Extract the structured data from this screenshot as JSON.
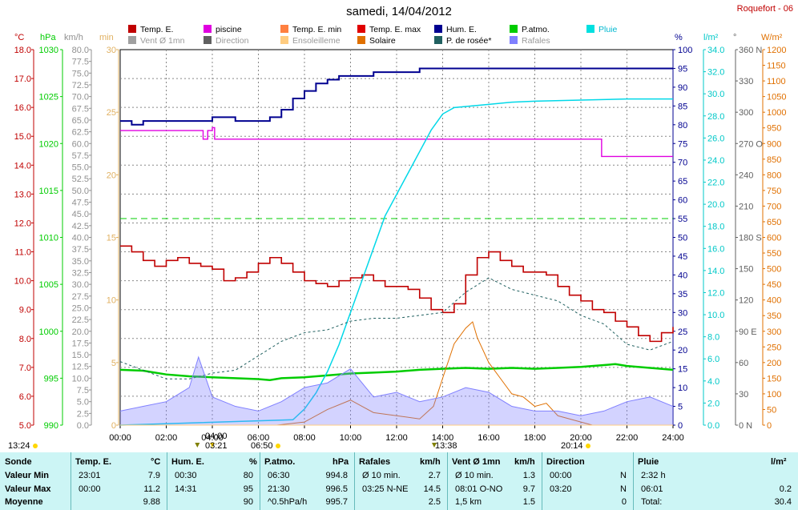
{
  "header": {
    "title": "samedi, 14/04/2012",
    "station": "Roquefort - 06"
  },
  "legend": [
    {
      "label": "Temp. E.",
      "color": "#c00000"
    },
    {
      "label": "piscine",
      "color": "#e000e0"
    },
    {
      "label": "Temp. E. min",
      "color": "#ff8040"
    },
    {
      "label": "Temp. E. max",
      "color": "#e00000"
    },
    {
      "label": "Hum. E.",
      "color": "#000090"
    },
    {
      "label": "P.atmo.",
      "color": "#00cc00"
    },
    {
      "label": "Pluie",
      "color": "#00e0e0"
    },
    {
      "label": "Vent Ø 1mn",
      "color": "#a0a0a0"
    },
    {
      "label": "Direction",
      "color": "#606060"
    },
    {
      "label": "Ensoleilleme",
      "color": "#ffcc80"
    },
    {
      "label": "Solaire",
      "color": "#e07000"
    },
    {
      "label": "P. de rosée*",
      "color": "#206060"
    },
    {
      "label": "Rafales",
      "color": "#8080ff"
    }
  ],
  "axis_units": {
    "temp": "°C",
    "press": "hPa",
    "wind": "km/h",
    "sun": "min",
    "hum": "%",
    "rain": "l/m²",
    "dir": "°",
    "solar": "W/m²"
  },
  "colors": {
    "temp": "#c00000",
    "press": "#00cc00",
    "wind": "#909090",
    "sun": "#e0b060",
    "hum": "#000090",
    "rain": "#00c8c8",
    "dir": "#606060",
    "solar": "#e07000"
  },
  "markers": {
    "sunrise": "06:50",
    "sunset": "20:14",
    "moonrise": "04:00",
    "moonset": "13:24",
    "max_gust_time": "03:21",
    "max_gust_time2": "13:38"
  },
  "chart_data": {
    "type": "line",
    "x_label": "",
    "x_ticks": [
      "00:00",
      "02:00",
      "04:00",
      "06:00",
      "08:00",
      "10:00",
      "12:00",
      "14:00",
      "16:00",
      "18:00",
      "20:00",
      "22:00",
      "24:00"
    ],
    "axes": {
      "temp_c": {
        "ylim": [
          5.0,
          18.0
        ],
        "ticks": [
          "5.0",
          "6.0",
          "7.0",
          "8.0",
          "9.0",
          "10.0",
          "11.0",
          "12.0",
          "13.0",
          "14.0",
          "15.0",
          "16.0",
          "17.0",
          "18.0"
        ]
      },
      "press_hpa": {
        "ylim": [
          990,
          1030
        ],
        "ticks": [
          "990",
          "995",
          "1000",
          "1005",
          "1010",
          "1015",
          "1020",
          "1025",
          "1030"
        ]
      },
      "wind_kmh": {
        "ylim": [
          0,
          80
        ],
        "ticks": [
          "0.0",
          "2.5",
          "5.0",
          "7.5",
          "10.0",
          "12.5",
          "15.0",
          "17.5",
          "20.0",
          "22.5",
          "25.0",
          "27.5",
          "30.0",
          "32.5",
          "35.0",
          "37.5",
          "40.0",
          "42.5",
          "45.0",
          "47.5",
          "50.0",
          "52.5",
          "55.0",
          "57.5",
          "60.0",
          "62.5",
          "65.0",
          "67.5",
          "70.0",
          "72.5",
          "75.0",
          "77.5",
          "80.0"
        ]
      },
      "sun_min": {
        "ylim": [
          0,
          30
        ],
        "ticks": [
          "0",
          "5",
          "10",
          "15",
          "20",
          "25",
          "30"
        ]
      },
      "hum_pct": {
        "ylim": [
          0,
          100
        ],
        "ticks": [
          "0",
          "5",
          "10",
          "15",
          "20",
          "25",
          "30",
          "35",
          "40",
          "45",
          "50",
          "55",
          "60",
          "65",
          "70",
          "75",
          "80",
          "85",
          "90",
          "95",
          "100"
        ]
      },
      "rain_mm": {
        "ylim": [
          0,
          35
        ],
        "ticks": [
          "0.0",
          "2.0",
          "4.0",
          "6.0",
          "8.0",
          "10.0",
          "12.0",
          "14.0",
          "16.0",
          "18.0",
          "20.0",
          "22.0",
          "24.0",
          "26.0",
          "28.0",
          "30.0",
          "32.0",
          "34.0"
        ]
      },
      "dir_deg": {
        "ylim": [
          0,
          360
        ],
        "ticks": [
          "0 N",
          "30",
          "60",
          "90 E",
          "120",
          "150",
          "180 S",
          "210",
          "240",
          "270 O",
          "300",
          "330",
          "360 N"
        ]
      },
      "solar_wm2": {
        "ylim": [
          0,
          1200
        ],
        "ticks": [
          "0",
          "50",
          "100",
          "150",
          "200",
          "250",
          "300",
          "350",
          "400",
          "450",
          "500",
          "550",
          "600",
          "650",
          "700",
          "750",
          "800",
          "850",
          "900",
          "950",
          "1000",
          "1050",
          "1100",
          "1150",
          "1200"
        ]
      }
    },
    "series": [
      {
        "name": "Temp. E.",
        "unit": "°C",
        "x": [
          0,
          0.5,
          1,
          1.5,
          2,
          2.5,
          3,
          3.5,
          4,
          4.5,
          5,
          5.5,
          6,
          6.5,
          7,
          7.5,
          8,
          8.5,
          9,
          9.5,
          10,
          10.5,
          11,
          11.5,
          12,
          12.5,
          13,
          13.5,
          14,
          14.5,
          15,
          15.5,
          16,
          16.5,
          17,
          17.5,
          18,
          18.5,
          19,
          19.5,
          20,
          20.5,
          21,
          21.5,
          22,
          22.5,
          23,
          23.5,
          24
        ],
        "values": [
          11.2,
          11.0,
          10.7,
          10.5,
          10.7,
          10.8,
          10.6,
          10.5,
          10.4,
          10.0,
          10.1,
          10.3,
          10.6,
          10.8,
          10.6,
          10.3,
          10.0,
          9.9,
          9.8,
          10.0,
          10.1,
          10.2,
          10.0,
          9.8,
          9.8,
          9.7,
          9.4,
          9.0,
          8.9,
          9.2,
          10.2,
          10.8,
          11.0,
          10.7,
          10.5,
          10.3,
          10.3,
          10.2,
          9.8,
          9.5,
          9.3,
          9.0,
          8.9,
          8.6,
          8.4,
          8.1,
          7.9,
          8.2,
          8.4
        ]
      },
      {
        "name": "piscine",
        "unit": "°C",
        "x": [
          0,
          3.5,
          3.6,
          3.8,
          4.0,
          4.1,
          20.8,
          20.9,
          24
        ],
        "values": [
          15.2,
          15.2,
          14.9,
          15.2,
          15.3,
          14.9,
          14.9,
          14.3,
          14.3
        ]
      },
      {
        "name": "Hum. E.",
        "unit": "%",
        "x": [
          0,
          0.5,
          1,
          2,
          3,
          3.5,
          4,
          5,
          6,
          6.5,
          7,
          7.5,
          8,
          8.5,
          9,
          9.5,
          10,
          11,
          12,
          13,
          14,
          15,
          16,
          17,
          18,
          20,
          22,
          24
        ],
        "values": [
          81,
          80,
          81,
          81,
          81,
          81,
          82,
          81,
          81,
          82,
          84,
          87,
          89,
          91,
          92,
          93,
          93,
          94,
          94,
          95,
          95,
          95,
          95,
          95,
          95,
          95,
          95,
          95
        ]
      },
      {
        "name": "P.atmo.",
        "unit": "hPa",
        "x": [
          0,
          1,
          2,
          3,
          4,
          5,
          6,
          6.5,
          7,
          8,
          9,
          10,
          11,
          12,
          13,
          14,
          15,
          16,
          17,
          18,
          19,
          20,
          21,
          21.5,
          22,
          23,
          24
        ],
        "values": [
          995.9,
          995.8,
          995.4,
          995.2,
          995.1,
          995.0,
          994.9,
          994.8,
          995.0,
          995.1,
          995.3,
          995.5,
          995.6,
          995.7,
          995.9,
          996.0,
          996.1,
          996.0,
          996.1,
          996.0,
          996.1,
          996.2,
          996.4,
          996.5,
          996.3,
          996.1,
          995.9
        ]
      },
      {
        "name": "Pluie",
        "unit": "l/m²",
        "x": [
          0,
          7.5,
          8,
          8.5,
          9,
          9.5,
          10,
          10.5,
          11,
          11.5,
          12,
          12.5,
          13,
          13.5,
          14,
          14.5,
          15,
          16,
          17,
          18,
          20,
          22,
          24
        ],
        "values": [
          0,
          0.5,
          1.5,
          3.0,
          5.0,
          7.5,
          10.5,
          13.5,
          16.5,
          19.5,
          21.5,
          23.5,
          25.5,
          27.5,
          29.0,
          29.6,
          29.7,
          29.9,
          30.1,
          30.2,
          30.3,
          30.4,
          30.4
        ]
      },
      {
        "name": "P. de rosée*",
        "unit": "°C",
        "x": [
          0,
          1,
          2,
          3,
          4,
          5,
          6,
          7,
          8,
          9,
          10,
          11,
          12,
          13,
          14,
          15,
          16,
          17,
          18,
          19,
          20,
          21,
          22,
          23,
          24
        ],
        "values": [
          7.2,
          6.9,
          6.6,
          6.6,
          6.8,
          6.9,
          7.4,
          7.9,
          8.2,
          8.3,
          8.6,
          8.7,
          8.7,
          8.8,
          8.9,
          9.6,
          10.1,
          9.7,
          9.5,
          9.3,
          8.8,
          8.5,
          7.8,
          7.6,
          7.9
        ]
      },
      {
        "name": "Solaire",
        "unit": "W/m²",
        "x": [
          0,
          6.8,
          8,
          9,
          10,
          11,
          12,
          13,
          13.6,
          14,
          14.5,
          15,
          15.3,
          15.5,
          16,
          16.5,
          17,
          17.5,
          18,
          18.5,
          19,
          20,
          20.5,
          24
        ],
        "values": [
          0,
          0,
          10,
          50,
          80,
          40,
          30,
          20,
          60,
          150,
          260,
          310,
          330,
          280,
          200,
          150,
          100,
          90,
          60,
          70,
          30,
          10,
          0,
          0
        ]
      },
      {
        "name": "Rafales",
        "unit": "km/h",
        "x": [
          0,
          1,
          2,
          3,
          3.4,
          4,
          5,
          6,
          7,
          8,
          9,
          10,
          11,
          12,
          13,
          14,
          15,
          16,
          17,
          18,
          19,
          20,
          21,
          22,
          23,
          24
        ],
        "values": [
          3,
          4,
          5,
          8,
          14.5,
          6,
          4,
          3,
          5,
          8,
          9,
          12,
          6,
          7,
          5,
          6,
          8,
          7,
          4,
          3,
          3,
          2,
          3,
          5,
          6,
          4
        ]
      },
      {
        "name": "Ensoleilleme",
        "unit": "min",
        "x": [
          0,
          24
        ],
        "values": [
          0,
          0
        ]
      }
    ],
    "constant_lines": [
      {
        "name": "P.atmo. reference",
        "value_hpa": 1012,
        "style": "dashed"
      }
    ]
  },
  "table": {
    "headers": [
      {
        "label": "Sonde",
        "unit": ""
      },
      {
        "label": "Temp. E.",
        "unit": "°C"
      },
      {
        "label": "Hum. E.",
        "unit": "%"
      },
      {
        "label": "P.atmo.",
        "unit": "hPa"
      },
      {
        "label": "Rafales",
        "unit": "km/h"
      },
      {
        "label": "Vent Ø 1mn",
        "unit": "km/h"
      },
      {
        "label": "Direction",
        "unit": ""
      },
      {
        "label": "Pluie",
        "unit": "l/m²"
      }
    ],
    "rows": [
      {
        "label": "Valeur Min",
        "cells": [
          [
            "23:01",
            "7.9"
          ],
          [
            "00:30",
            "80"
          ],
          [
            "06:30",
            "994.8"
          ],
          [
            "Ø 10 min.",
            "2.7"
          ],
          [
            "Ø 10 min.",
            "1.3"
          ],
          [
            "00:00",
            "N"
          ],
          [
            "2:32 h",
            ""
          ]
        ]
      },
      {
        "label": "Valeur Max",
        "cells": [
          [
            "00:00",
            "11.2"
          ],
          [
            "14:31",
            "95"
          ],
          [
            "21:30",
            "996.5"
          ],
          [
            "03:25  N-NE",
            "14.5"
          ],
          [
            "08:01  O-NO",
            "9.7"
          ],
          [
            "03:20",
            "N"
          ],
          [
            "06:01",
            "0.2"
          ]
        ]
      },
      {
        "label": "Moyenne",
        "cells": [
          [
            "",
            "9.88"
          ],
          [
            "",
            "90"
          ],
          [
            "^0.5hPa/h",
            "995.7"
          ],
          [
            "",
            "2.5"
          ],
          [
            "1,5 km",
            "1.5"
          ],
          [
            "",
            "0"
          ],
          [
            "Total:",
            "30.4"
          ]
        ]
      }
    ]
  }
}
